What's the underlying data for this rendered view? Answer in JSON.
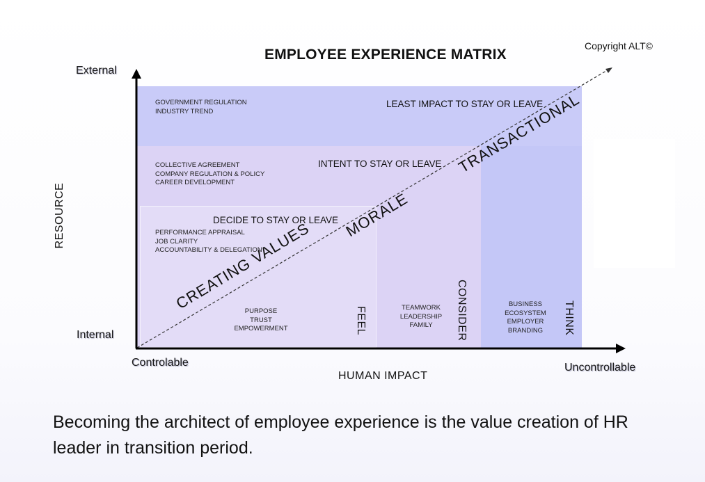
{
  "title": "EMPLOYEE EXPERIENCE MATRIX",
  "copyright": "Copyright ALT©",
  "axes": {
    "y_top": "External",
    "y_bottom": "Internal",
    "y_title": "RESOURCE",
    "x_left": "Controlable",
    "x_right": "Uncontrollable",
    "x_title": "HUMAN IMPACT"
  },
  "zones": {
    "least": {
      "heading": "LEAST IMPACT TO STAY OR LEAVE",
      "items": [
        "GOVERNMENT REGULATION",
        "INDUSTRY TREND"
      ]
    },
    "intent": {
      "heading": "INTENT TO STAY OR LEAVE",
      "items": [
        "COLLECTIVE AGREEMENT",
        "COMPANY REGULATION & POLICY",
        "CAREER DEVELOPMENT"
      ]
    },
    "decide": {
      "heading": "DECIDE TO STAY OR LEAVE",
      "items": [
        "PERFORMANCE APPRAISAL",
        "JOB CLARITY",
        "ACCOUNTABILITY & DELEGATION"
      ]
    }
  },
  "columns": {
    "feel": {
      "label": "FEEL",
      "items": [
        "PURPOSE",
        "TRUST",
        "EMPOWERMENT"
      ]
    },
    "consider": {
      "label": "CONSIDER",
      "items": [
        "TEAMWORK",
        "LEADERSHIP",
        "FAMILY"
      ]
    },
    "think": {
      "label": "THINK",
      "items": [
        "BUSINESS",
        "ECOSYSTEM",
        "EMPLOYER",
        "BRANDING"
      ]
    }
  },
  "diagonal": {
    "creating": "CREATING VALUES",
    "morale": "MORALE",
    "transactional": "TRANSACTIONAL"
  },
  "colors": {
    "outer_blue": "#c9cbf8",
    "mid_lavender": "#dcd3f5",
    "inner_lavender": "#e3dcf7",
    "think_blue": "#c4c7f7",
    "axis": "#000000"
  },
  "caption": "Becoming the architect of employee experience is the value creation of HR leader in transition period."
}
